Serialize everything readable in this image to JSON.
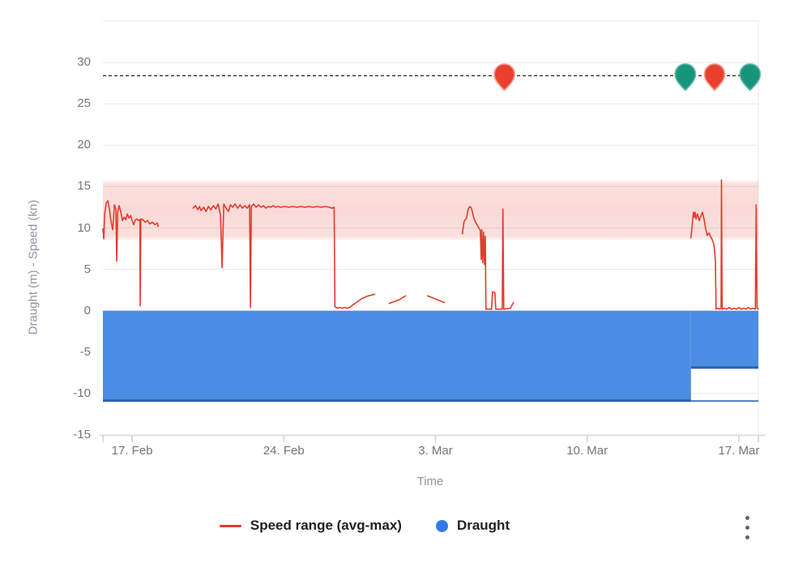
{
  "axes": {
    "x_title": "Time",
    "y_title": "Draught (m) - Speed (kn)"
  },
  "legend": {
    "items": [
      {
        "label": "Speed range (avg-max)",
        "swatch": "line",
        "color": "#e23b2c"
      },
      {
        "label": "Draught",
        "swatch": "dot",
        "color": "#2d7ce9"
      }
    ]
  },
  "menu": {
    "more_options_icon": "kebab-vertical"
  },
  "chart_data": {
    "type": "line",
    "title": "",
    "xlabel": "Time",
    "ylabel": "Draught (m) - Speed (kn)",
    "x_unit": "days since 17. Feb",
    "x_domain": [
      -1.35,
      28.9
    ],
    "x_ticks": [
      {
        "day": 0,
        "label": "17. Feb"
      },
      {
        "day": 7,
        "label": "24. Feb"
      },
      {
        "day": 14,
        "label": "3. Mar"
      },
      {
        "day": 21,
        "label": "10. Mar"
      },
      {
        "day": 28,
        "label": "17. Mar"
      }
    ],
    "y_domain": [
      -15,
      35
    ],
    "y_ticks": [
      -15,
      -10,
      -5,
      0,
      5,
      10,
      15,
      20,
      25,
      30
    ],
    "grid": true,
    "grid_color": "#e8e8e8",
    "legend_position": "bottom",
    "speed_band": {
      "from": 8.7,
      "to": 15.6,
      "color": "#e23b2c",
      "opacity": 0.19
    },
    "limit_line": {
      "value": 28.4,
      "style": "dashed",
      "color": "#2e2e2e"
    },
    "series": [
      {
        "name": "Speed range (avg-max)",
        "type": "line",
        "color": "#e23b2c",
        "segments": [
          [
            [
              -1.35,
              9.9
            ],
            [
              -1.31,
              8.7
            ],
            [
              -1.27,
              11.6
            ],
            [
              -1.2,
              13.0
            ],
            [
              -1.12,
              13.3
            ],
            [
              -1.05,
              12.3
            ],
            [
              -0.97,
              10.7
            ],
            [
              -0.9,
              9.8
            ],
            [
              -0.86,
              11.1
            ],
            [
              -0.82,
              12.8
            ],
            [
              -0.75,
              12.3
            ],
            [
              -0.71,
              6.0
            ],
            [
              -0.67,
              11.9
            ],
            [
              -0.6,
              12.7
            ],
            [
              -0.52,
              11.9
            ],
            [
              -0.45,
              10.9
            ],
            [
              -0.37,
              11.3
            ],
            [
              -0.3,
              11.0
            ],
            [
              -0.22,
              11.7
            ],
            [
              -0.15,
              11.2
            ],
            [
              -0.07,
              11.5
            ],
            [
              0,
              10.9
            ],
            [
              0.07,
              10.4
            ],
            [
              0.15,
              11.0
            ],
            [
              0.22,
              11.1
            ],
            [
              0.3,
              10.9
            ],
            [
              0.36,
              11.0
            ],
            [
              0.37,
              0.6
            ],
            [
              0.4,
              11.1
            ],
            [
              0.49,
              11.0
            ],
            [
              0.6,
              10.7
            ],
            [
              0.71,
              10.9
            ],
            [
              0.82,
              10.5
            ],
            [
              0.94,
              10.7
            ],
            [
              1.05,
              10.4
            ],
            [
              1.16,
              10.6
            ],
            [
              1.2,
              10.2
            ]
          ],
          [
            [
              2.81,
              12.4
            ],
            [
              2.92,
              12.7
            ],
            [
              3.03,
              12.2
            ],
            [
              3.11,
              12.6
            ],
            [
              3.18,
              12.1
            ],
            [
              3.3,
              12.5
            ],
            [
              3.41,
              12.0
            ],
            [
              3.52,
              12.6
            ],
            [
              3.63,
              12.2
            ],
            [
              3.75,
              12.7
            ],
            [
              3.86,
              12.3
            ],
            [
              3.97,
              12.9
            ],
            [
              4.08,
              11.5
            ],
            [
              4.15,
              5.2
            ],
            [
              4.23,
              12.9
            ],
            [
              4.34,
              12.4
            ],
            [
              4.45,
              12.0
            ],
            [
              4.53,
              12.8
            ],
            [
              4.64,
              12.5
            ],
            [
              4.75,
              12.9
            ],
            [
              4.87,
              12.4
            ],
            [
              4.98,
              12.8
            ],
            [
              5.09,
              12.4
            ],
            [
              5.2,
              12.7
            ],
            [
              5.31,
              12.4
            ],
            [
              5.42,
              12.8
            ],
            [
              5.46,
              0.4
            ],
            [
              5.5,
              12.6
            ],
            [
              5.61,
              12.9
            ],
            [
              5.72,
              12.5
            ],
            [
              5.83,
              12.8
            ],
            [
              5.95,
              12.5
            ],
            [
              6.06,
              12.7
            ],
            [
              6.17,
              12.4
            ],
            [
              6.28,
              12.6
            ],
            [
              6.39,
              12.5
            ],
            [
              6.51,
              12.7
            ],
            [
              6.62,
              12.5
            ],
            [
              6.73,
              12.6
            ],
            [
              6.85,
              12.5
            ],
            [
              7.03,
              12.6
            ],
            [
              7.22,
              12.5
            ],
            [
              7.41,
              12.6
            ],
            [
              7.6,
              12.5
            ],
            [
              7.79,
              12.6
            ],
            [
              7.97,
              12.5
            ],
            [
              8.16,
              12.6
            ],
            [
              8.35,
              12.5
            ],
            [
              8.54,
              12.6
            ],
            [
              8.72,
              12.5
            ],
            [
              8.91,
              12.6
            ],
            [
              9.1,
              12.5
            ],
            [
              9.21,
              12.4
            ],
            [
              9.32,
              12.5
            ],
            [
              9.36,
              0.5
            ],
            [
              9.47,
              0.3
            ],
            [
              9.58,
              0.4
            ],
            [
              9.69,
              0.3
            ],
            [
              9.81,
              0.4
            ],
            [
              9.92,
              0.3
            ],
            [
              10.03,
              0.4
            ],
            [
              10.18,
              0.7
            ],
            [
              10.4,
              1.1
            ],
            [
              10.62,
              1.5
            ],
            [
              10.9,
              1.8
            ],
            [
              11.19,
              2.0
            ]
          ],
          [
            [
              11.87,
              0.9
            ],
            [
              12.3,
              1.3
            ],
            [
              12.62,
              1.8
            ]
          ],
          [
            [
              13.63,
              1.8
            ],
            [
              14.02,
              1.4
            ],
            [
              14.41,
              1.0
            ]
          ],
          [
            [
              15.24,
              9.3
            ],
            [
              15.32,
              10.8
            ],
            [
              15.43,
              11.2
            ],
            [
              15.51,
              12.3
            ],
            [
              15.58,
              12.6
            ],
            [
              15.66,
              12.4
            ],
            [
              15.73,
              11.6
            ],
            [
              15.81,
              10.9
            ],
            [
              15.96,
              10.2
            ],
            [
              16.07,
              9.7
            ],
            [
              16.11,
              6.2
            ],
            [
              16.14,
              9.8
            ],
            [
              16.18,
              5.8
            ],
            [
              16.22,
              9.5
            ],
            [
              16.26,
              5.6
            ],
            [
              16.3,
              9.0
            ],
            [
              16.33,
              0.2
            ],
            [
              16.59,
              0.2
            ],
            [
              16.63,
              2.3
            ],
            [
              16.74,
              2.2
            ],
            [
              16.78,
              0.2
            ],
            [
              17.08,
              0.2
            ],
            [
              17.11,
              12.3
            ],
            [
              17.15,
              0.2
            ],
            [
              17.45,
              0.3
            ],
            [
              17.6,
              1.0
            ]
          ],
          [
            [
              25.79,
              8.8
            ],
            [
              25.83,
              9.9
            ],
            [
              25.87,
              11.1
            ],
            [
              25.91,
              11.9
            ],
            [
              25.94,
              11.3
            ],
            [
              25.98,
              11.9
            ],
            [
              26.02,
              11.1
            ],
            [
              26.09,
              11.7
            ],
            [
              26.17,
              10.9
            ],
            [
              26.24,
              11.4
            ],
            [
              26.32,
              11.9
            ],
            [
              26.39,
              11.1
            ],
            [
              26.47,
              9.9
            ],
            [
              26.54,
              9.1
            ],
            [
              26.62,
              9.4
            ],
            [
              26.69,
              9.0
            ],
            [
              26.77,
              8.6
            ],
            [
              26.84,
              8.1
            ],
            [
              26.88,
              7.2
            ],
            [
              26.92,
              6.0
            ],
            [
              26.95,
              0.2
            ],
            [
              27.03,
              0.3
            ],
            [
              27.1,
              0.2
            ],
            [
              27.18,
              0.3
            ],
            [
              27.2,
              15.8
            ],
            [
              27.23,
              0.2
            ],
            [
              27.33,
              0.3
            ],
            [
              27.44,
              0.2
            ],
            [
              27.55,
              0.4
            ],
            [
              27.66,
              0.2
            ],
            [
              27.78,
              0.3
            ],
            [
              27.89,
              0.2
            ],
            [
              28.0,
              0.4
            ],
            [
              28.11,
              0.2
            ],
            [
              28.22,
              0.3
            ],
            [
              28.33,
              0.2
            ],
            [
              28.44,
              0.4
            ],
            [
              28.55,
              0.2
            ],
            [
              28.64,
              0.3
            ],
            [
              28.76,
              0.2
            ],
            [
              28.8,
              12.8
            ],
            [
              28.84,
              0.3
            ],
            [
              28.9,
              0.2
            ]
          ]
        ]
      },
      {
        "name": "Draught",
        "type": "area",
        "color": "#4b8de4",
        "edge_color": "#2e62ab",
        "baseline": 0,
        "steps": [
          {
            "from": -1.35,
            "to": 25.79,
            "value": -11
          },
          {
            "from": 25.79,
            "to": 28.9,
            "value": -7
          }
        ],
        "max_line": {
          "value": -11,
          "from": 25.79,
          "to": 28.9
        }
      }
    ],
    "event_markers": {
      "line_value": 28.4,
      "colors": {
        "red": "#e8402c",
        "green": "#17957c"
      },
      "halo": {
        "red": "#f59b8d",
        "green": "#5ab3a2"
      },
      "items": [
        {
          "day": 17.18,
          "color": "red"
        },
        {
          "day": 25.53,
          "color": "green"
        },
        {
          "day": 26.88,
          "color": "red"
        },
        {
          "day": 28.52,
          "color": "green"
        }
      ]
    }
  }
}
